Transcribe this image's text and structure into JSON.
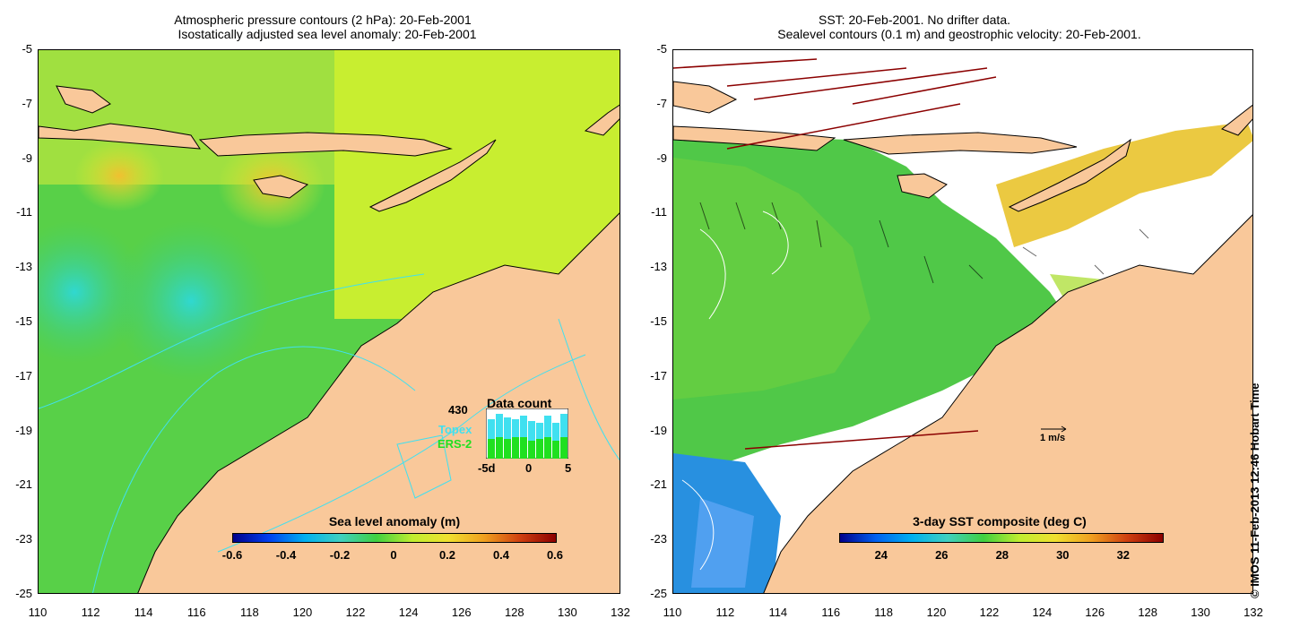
{
  "left_panel": {
    "title_line1": "Atmospheric pressure contours (2 hPa): 20-Feb-2001",
    "title_line2": "Isostatically adjusted sea level anomaly: 20-Feb-2001",
    "colorbar": {
      "title": "Sea level anomaly (m)",
      "ticks": [
        "-0.6",
        "-0.4",
        "-0.2",
        "0",
        "0.2",
        "0.4",
        "0.6"
      ]
    },
    "inset": {
      "title": "Data count",
      "max_label": "430",
      "series_topex": "Topex",
      "series_ers": "ERS-2",
      "x_ticks": [
        "-5d",
        "0",
        "5"
      ],
      "colors": {
        "topex": "#40e0f0",
        "ers": "#20e020"
      }
    }
  },
  "right_panel": {
    "title_line1": "SST: 20-Feb-2001. No drifter data.",
    "title_line2": "Sealevel contours (0.1 m) and geostrophic velocity: 20-Feb-2001.",
    "colorbar": {
      "title": "3-day SST composite (deg C)",
      "ticks": [
        "24",
        "26",
        "28",
        "30",
        "32"
      ]
    },
    "scale_label": "1 m/s"
  },
  "axes": {
    "y_ticks": [
      "-5",
      "-7",
      "-9",
      "-11",
      "-13",
      "-15",
      "-17",
      "-19",
      "-21",
      "-23",
      "-25"
    ],
    "x_ticks": [
      "110",
      "112",
      "114",
      "116",
      "118",
      "120",
      "122",
      "124",
      "126",
      "128",
      "130",
      "132"
    ]
  },
  "copyright": "© IMOS 11-Feb-2013 12:46 Hobart Time",
  "colors": {
    "land": "#f9c89a",
    "sea_green": "#40d040",
    "ocean_white": "#ffffff"
  }
}
